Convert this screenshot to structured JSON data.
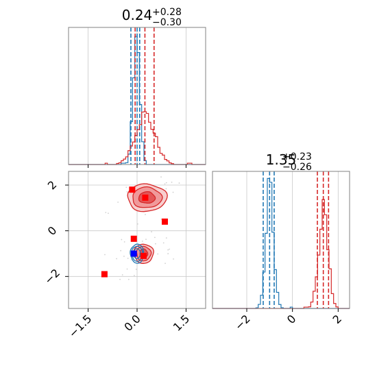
{
  "chart_data": {
    "type": "corner",
    "colors": {
      "blue": "#1f77b4",
      "red": "#d62728",
      "marker_red": "#ff0000",
      "marker_blue": "#0000ff"
    },
    "panels": [
      {
        "id": "hist_x",
        "type": "histogram",
        "title": {
          "value": "0.24",
          "plus": "+0.28",
          "minus": "−0.30"
        },
        "xlim": [
          -2.1,
          2.1
        ],
        "xticks": [
          -1.5,
          0.0,
          1.5
        ],
        "grid": true,
        "series": [
          {
            "color": "blue",
            "mean": -0.02,
            "sd": 0.1,
            "peak": 1.0,
            "quantiles": [
              -0.19,
              0.0,
              0.08
            ]
          },
          {
            "color": "red",
            "mean": 0.24,
            "sd": 0.3,
            "peak": 0.37,
            "quantiles": [
              -0.06,
              0.24,
              0.52
            ]
          }
        ]
      },
      {
        "id": "hist_y",
        "type": "histogram",
        "title": {
          "value": "1.35",
          "plus": "+0.23",
          "minus": "−0.26"
        },
        "xlim": [
          -3.5,
          2.5
        ],
        "xticks": [
          -2,
          0,
          2
        ],
        "grid": true,
        "series": [
          {
            "color": "blue",
            "mean": -1.0,
            "sd": 0.17,
            "peak": 0.9,
            "quantiles": [
              -1.28,
              -1.0,
              -0.8
            ]
          },
          {
            "color": "red",
            "mean": 1.35,
            "sd": 0.21,
            "peak": 0.72,
            "quantiles": [
              1.09,
              1.35,
              1.58
            ]
          }
        ]
      },
      {
        "id": "scatter_xy",
        "type": "2d-density",
        "xlim": [
          -2.1,
          2.1
        ],
        "ylim": [
          -3.4,
          2.6
        ],
        "xticks": [
          -1.5,
          0.0,
          1.5
        ],
        "yticks": [
          -2,
          0,
          2
        ],
        "grid": true,
        "contours": [
          {
            "color": "red",
            "center": [
              0.3,
              1.45
            ],
            "rx": [
              0.25,
              0.45,
              0.6
            ],
            "ry": [
              0.25,
              0.45,
              0.6
            ]
          },
          {
            "color": "red",
            "center": [
              0.2,
              -1.0
            ],
            "rx": [
              0.12,
              0.22,
              0.3
            ],
            "ry": [
              0.2,
              0.32,
              0.42
            ]
          },
          {
            "color": "blue",
            "center": [
              0.0,
              -1.0
            ],
            "rx": [
              0.1,
              0.16,
              0.2
            ],
            "ry": [
              0.22,
              0.33,
              0.42
            ]
          }
        ],
        "markers": [
          {
            "x": -0.15,
            "y": 1.8,
            "color": "marker_red"
          },
          {
            "x": 0.25,
            "y": 1.45,
            "color": "marker_red"
          },
          {
            "x": 0.85,
            "y": 0.4,
            "color": "marker_red"
          },
          {
            "x": -0.1,
            "y": -0.35,
            "color": "marker_red"
          },
          {
            "x": 0.2,
            "y": -1.1,
            "color": "marker_red"
          },
          {
            "x": -0.1,
            "y": -1.0,
            "color": "marker_blue"
          },
          {
            "x": -1.0,
            "y": -1.9,
            "color": "marker_red"
          }
        ]
      }
    ]
  }
}
